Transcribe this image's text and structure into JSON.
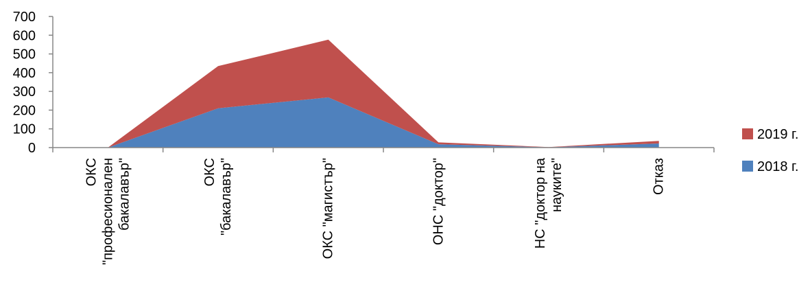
{
  "chart_data": {
    "type": "area",
    "stacked": true,
    "title": "",
    "xlabel": "",
    "ylabel": "",
    "ylim": [
      0,
      700
    ],
    "yticks": [
      0,
      100,
      200,
      300,
      400,
      500,
      600,
      700
    ],
    "grid": false,
    "legend_position": "right",
    "categories": [
      [
        "ОКС",
        "\"професионален",
        "бакалавър\""
      ],
      [
        "ОКС",
        "\"бакалавър\""
      ],
      [
        "ОКС \"магистър\""
      ],
      [
        "ОНС \"доктор\""
      ],
      [
        "НС \"доктор на",
        "науките\""
      ],
      [
        "Отказ"
      ]
    ],
    "series": [
      {
        "name": "2018 г.",
        "color": "#4f81bd",
        "values": [
          0,
          210,
          268,
          18,
          2,
          22
        ]
      },
      {
        "name": "2019 г.",
        "color": "#c0504d",
        "values": [
          0,
          225,
          308,
          10,
          1,
          14
        ]
      }
    ],
    "legend_order": [
      "2019 г.",
      "2018 г."
    ]
  }
}
